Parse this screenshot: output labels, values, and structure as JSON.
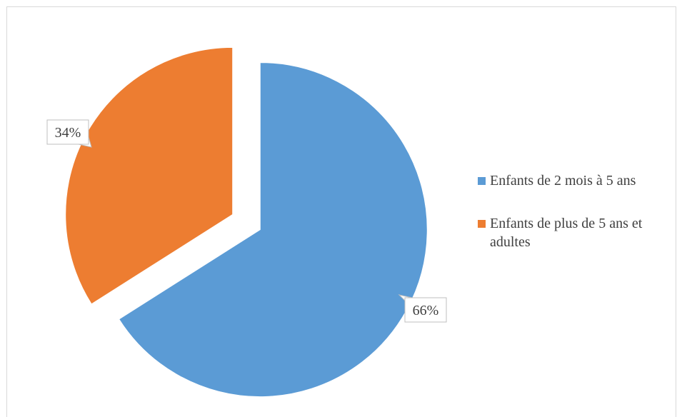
{
  "chart_data": {
    "type": "pie",
    "title": "",
    "series": [
      {
        "name": "",
        "values": [
          66,
          34
        ]
      }
    ],
    "categories": [
      "Enfants de 2 mois à 5 ans",
      "Enfants de plus de 5 ans et adultes"
    ],
    "data_labels": [
      "66%",
      "34%"
    ],
    "colors": [
      "#5b9bd5",
      "#ed7d31"
    ],
    "exploded": true,
    "legend_position": "right"
  }
}
